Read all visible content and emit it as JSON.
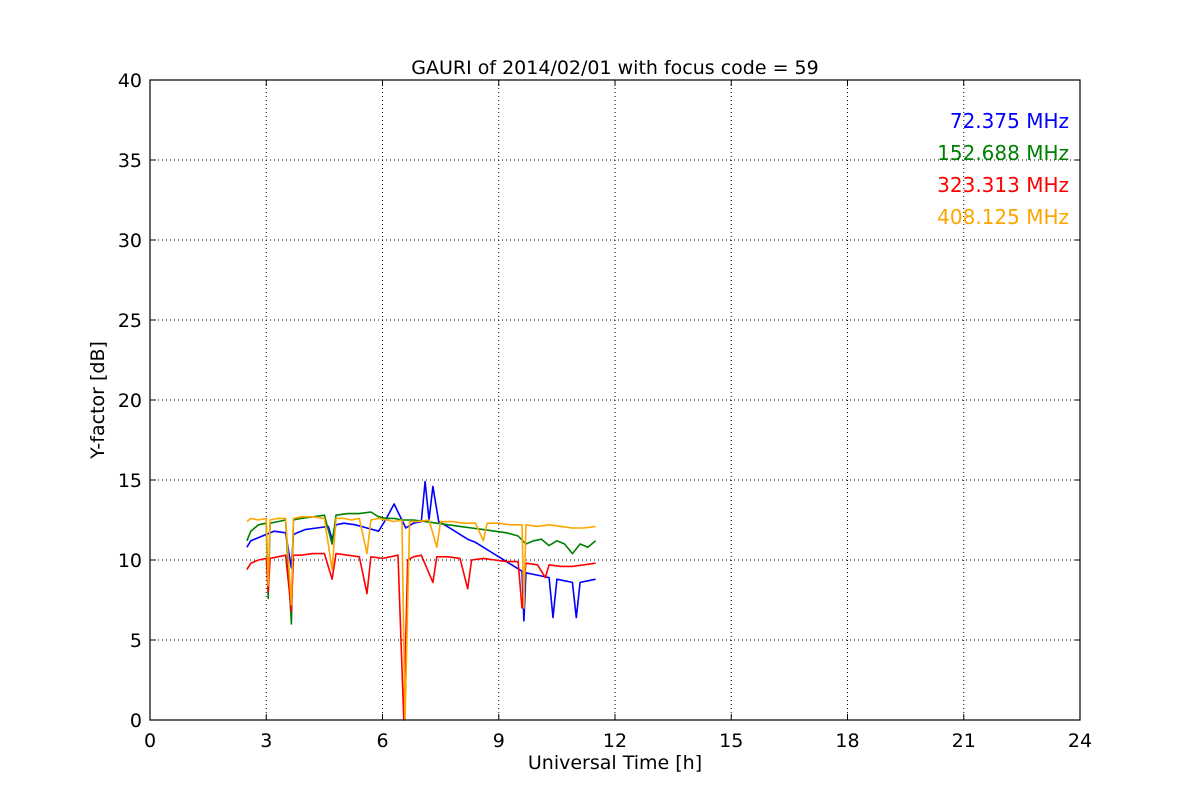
{
  "chart_data": {
    "type": "line",
    "title": "GAURI of 2014/02/01 with focus code = 59",
    "xlabel": "Universal Time [h]",
    "ylabel": "Y-factor [dB]",
    "xlim": [
      0,
      24
    ],
    "ylim": [
      0,
      40
    ],
    "xticks": [
      0,
      3,
      6,
      9,
      12,
      15,
      18,
      21,
      24
    ],
    "yticks": [
      0,
      5,
      10,
      15,
      20,
      25,
      30,
      35,
      40
    ],
    "xtick_labels": [
      "0",
      "3",
      "6",
      "9",
      "12",
      "15",
      "18",
      "21",
      "24"
    ],
    "ytick_labels": [
      "0",
      "5",
      "10",
      "15",
      "20",
      "25",
      "30",
      "35",
      "40"
    ],
    "grid": true,
    "legend_position": "top-right",
    "series": [
      {
        "name": "72.375 MHz",
        "color": "#0000ff",
        "points": [
          [
            2.5,
            10.8
          ],
          [
            2.6,
            11.2
          ],
          [
            2.8,
            11.4
          ],
          [
            3.0,
            11.6
          ],
          [
            3.2,
            11.8
          ],
          [
            3.5,
            11.7
          ],
          [
            3.65,
            9.5
          ],
          [
            3.7,
            11.6
          ],
          [
            4.0,
            11.9
          ],
          [
            4.3,
            12.0
          ],
          [
            4.6,
            12.1
          ],
          [
            4.7,
            11.3
          ],
          [
            4.8,
            12.2
          ],
          [
            5.0,
            12.3
          ],
          [
            5.3,
            12.2
          ],
          [
            5.6,
            12.0
          ],
          [
            5.9,
            11.8
          ],
          [
            6.1,
            12.6
          ],
          [
            6.3,
            13.5
          ],
          [
            6.5,
            12.5
          ],
          [
            6.6,
            12.0
          ],
          [
            6.8,
            12.3
          ],
          [
            7.0,
            12.4
          ],
          [
            7.1,
            14.9
          ],
          [
            7.2,
            12.5
          ],
          [
            7.3,
            14.6
          ],
          [
            7.45,
            12.4
          ],
          [
            7.6,
            12.2
          ],
          [
            7.8,
            11.9
          ],
          [
            8.0,
            11.6
          ],
          [
            8.2,
            11.3
          ],
          [
            8.4,
            11.1
          ],
          [
            8.6,
            10.8
          ],
          [
            8.8,
            10.5
          ],
          [
            9.0,
            10.2
          ],
          [
            9.2,
            9.9
          ],
          [
            9.4,
            9.6
          ],
          [
            9.6,
            9.3
          ],
          [
            9.65,
            6.2
          ],
          [
            9.7,
            9.2
          ],
          [
            9.9,
            9.1
          ],
          [
            10.1,
            9.0
          ],
          [
            10.3,
            8.9
          ],
          [
            10.4,
            6.4
          ],
          [
            10.5,
            8.8
          ],
          [
            10.7,
            8.7
          ],
          [
            10.9,
            8.6
          ],
          [
            11.0,
            6.4
          ],
          [
            11.1,
            8.6
          ],
          [
            11.3,
            8.7
          ],
          [
            11.5,
            8.8
          ]
        ]
      },
      {
        "name": "152.688 MHz",
        "color": "#008000",
        "points": [
          [
            2.5,
            11.2
          ],
          [
            2.6,
            11.8
          ],
          [
            2.8,
            12.2
          ],
          [
            3.0,
            12.3
          ],
          [
            3.05,
            7.6
          ],
          [
            3.1,
            12.3
          ],
          [
            3.3,
            12.4
          ],
          [
            3.5,
            12.5
          ],
          [
            3.65,
            6.0
          ],
          [
            3.7,
            12.5
          ],
          [
            3.9,
            12.6
          ],
          [
            4.2,
            12.7
          ],
          [
            4.5,
            12.8
          ],
          [
            4.7,
            11.0
          ],
          [
            4.8,
            12.8
          ],
          [
            5.1,
            12.9
          ],
          [
            5.4,
            12.9
          ],
          [
            5.7,
            13.0
          ],
          [
            5.9,
            12.7
          ],
          [
            6.1,
            12.6
          ],
          [
            6.3,
            12.6
          ],
          [
            6.5,
            12.5
          ],
          [
            6.8,
            12.5
          ],
          [
            7.1,
            12.4
          ],
          [
            7.4,
            12.3
          ],
          [
            7.7,
            12.2
          ],
          [
            8.0,
            12.1
          ],
          [
            8.3,
            12.0
          ],
          [
            8.6,
            11.9
          ],
          [
            8.9,
            11.8
          ],
          [
            9.2,
            11.7
          ],
          [
            9.5,
            11.5
          ],
          [
            9.7,
            11.0
          ],
          [
            9.9,
            11.2
          ],
          [
            10.1,
            11.3
          ],
          [
            10.3,
            10.9
          ],
          [
            10.5,
            11.2
          ],
          [
            10.7,
            11.0
          ],
          [
            10.9,
            10.4
          ],
          [
            11.1,
            11.0
          ],
          [
            11.3,
            10.8
          ],
          [
            11.5,
            11.2
          ]
        ]
      },
      {
        "name": "323.313 MHz",
        "color": "#ff0000",
        "points": [
          [
            2.5,
            9.4
          ],
          [
            2.6,
            9.8
          ],
          [
            2.8,
            10.0
          ],
          [
            3.0,
            10.1
          ],
          [
            3.05,
            8.0
          ],
          [
            3.1,
            10.1
          ],
          [
            3.3,
            10.2
          ],
          [
            3.5,
            10.3
          ],
          [
            3.65,
            6.8
          ],
          [
            3.7,
            10.3
          ],
          [
            3.9,
            10.3
          ],
          [
            4.2,
            10.4
          ],
          [
            4.5,
            10.4
          ],
          [
            4.7,
            8.8
          ],
          [
            4.8,
            10.4
          ],
          [
            5.1,
            10.3
          ],
          [
            5.4,
            10.2
          ],
          [
            5.6,
            7.9
          ],
          [
            5.7,
            10.2
          ],
          [
            6.0,
            10.1
          ],
          [
            6.2,
            10.2
          ],
          [
            6.4,
            10.3
          ],
          [
            6.55,
            0.0
          ],
          [
            6.65,
            10.0
          ],
          [
            6.8,
            10.2
          ],
          [
            7.0,
            10.3
          ],
          [
            7.3,
            8.6
          ],
          [
            7.4,
            10.2
          ],
          [
            7.7,
            10.2
          ],
          [
            8.0,
            10.1
          ],
          [
            8.2,
            8.2
          ],
          [
            8.3,
            10.0
          ],
          [
            8.6,
            10.1
          ],
          [
            8.9,
            10.0
          ],
          [
            9.2,
            9.9
          ],
          [
            9.5,
            9.9
          ],
          [
            9.6,
            7.0
          ],
          [
            9.7,
            9.8
          ],
          [
            10.0,
            9.7
          ],
          [
            10.2,
            8.9
          ],
          [
            10.3,
            9.7
          ],
          [
            10.6,
            9.6
          ],
          [
            10.9,
            9.6
          ],
          [
            11.2,
            9.7
          ],
          [
            11.5,
            9.8
          ]
        ]
      },
      {
        "name": "408.125 MHz",
        "color": "#ffa500",
        "points": [
          [
            2.5,
            12.4
          ],
          [
            2.6,
            12.6
          ],
          [
            2.8,
            12.5
          ],
          [
            3.0,
            12.6
          ],
          [
            3.05,
            8.4
          ],
          [
            3.1,
            12.5
          ],
          [
            3.3,
            12.6
          ],
          [
            3.5,
            12.6
          ],
          [
            3.65,
            7.2
          ],
          [
            3.7,
            12.6
          ],
          [
            3.9,
            12.7
          ],
          [
            4.2,
            12.7
          ],
          [
            4.5,
            12.6
          ],
          [
            4.7,
            9.4
          ],
          [
            4.8,
            12.6
          ],
          [
            5.0,
            12.6
          ],
          [
            5.2,
            12.5
          ],
          [
            5.4,
            12.6
          ],
          [
            5.6,
            10.4
          ],
          [
            5.7,
            12.5
          ],
          [
            5.9,
            12.6
          ],
          [
            6.1,
            12.5
          ],
          [
            6.3,
            12.4
          ],
          [
            6.5,
            12.5
          ],
          [
            6.58,
            0.0
          ],
          [
            6.7,
            12.4
          ],
          [
            6.9,
            12.4
          ],
          [
            7.2,
            12.5
          ],
          [
            7.4,
            10.8
          ],
          [
            7.5,
            12.4
          ],
          [
            7.8,
            12.4
          ],
          [
            8.1,
            12.3
          ],
          [
            8.4,
            12.3
          ],
          [
            8.6,
            11.2
          ],
          [
            8.7,
            12.3
          ],
          [
            9.0,
            12.3
          ],
          [
            9.3,
            12.2
          ],
          [
            9.6,
            12.2
          ],
          [
            9.65,
            7.0
          ],
          [
            9.7,
            12.2
          ],
          [
            10.0,
            12.1
          ],
          [
            10.3,
            12.2
          ],
          [
            10.6,
            12.1
          ],
          [
            10.9,
            12.0
          ],
          [
            11.2,
            12.0
          ],
          [
            11.5,
            12.1
          ]
        ]
      }
    ]
  }
}
